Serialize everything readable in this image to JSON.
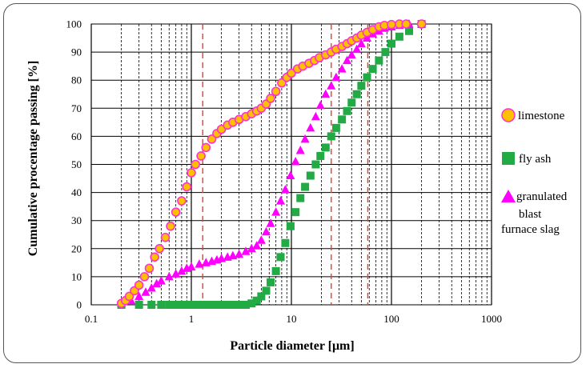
{
  "chart_data": {
    "type": "scatter",
    "title": "",
    "xlabel": "Particle diameter  [μm]",
    "ylabel": "Cumulative  procentage passing  [%]",
    "xscale": "log",
    "xlim": [
      0.1,
      1000
    ],
    "ylim": [
      0,
      100
    ],
    "x_ticks": [
      "0.1",
      "1",
      "10",
      "100",
      "1000"
    ],
    "y_ticks": [
      "0",
      "10",
      "20",
      "30",
      "40",
      "50",
      "60",
      "70",
      "80",
      "90",
      "100"
    ],
    "grid": true,
    "legend_position": "right",
    "reference_lines_x": [
      1.3,
      25,
      58
    ],
    "series": [
      {
        "name": "limestone",
        "marker": "circle",
        "color": "#ff33cc",
        "fill": "#ffc000",
        "points": [
          [
            0.2,
            0.5
          ],
          [
            0.22,
            1.5
          ],
          [
            0.24,
            3
          ],
          [
            0.27,
            5
          ],
          [
            0.3,
            7
          ],
          [
            0.34,
            10
          ],
          [
            0.38,
            13
          ],
          [
            0.43,
            17
          ],
          [
            0.48,
            20
          ],
          [
            0.55,
            24
          ],
          [
            0.62,
            28
          ],
          [
            0.7,
            33
          ],
          [
            0.8,
            37
          ],
          [
            0.9,
            42
          ],
          [
            1.0,
            47
          ],
          [
            1.1,
            50
          ],
          [
            1.25,
            53
          ],
          [
            1.4,
            56
          ],
          [
            1.6,
            59
          ],
          [
            1.8,
            61
          ],
          [
            2.0,
            62.5
          ],
          [
            2.3,
            64
          ],
          [
            2.6,
            65
          ],
          [
            3.0,
            66
          ],
          [
            3.5,
            67
          ],
          [
            4.0,
            68
          ],
          [
            4.5,
            69
          ],
          [
            5.0,
            70
          ],
          [
            5.6,
            71.5
          ],
          [
            6.2,
            73.5
          ],
          [
            7.0,
            76
          ],
          [
            8.0,
            79
          ],
          [
            9.0,
            81
          ],
          [
            10.0,
            82.5
          ],
          [
            11.5,
            84
          ],
          [
            13,
            85
          ],
          [
            15,
            86
          ],
          [
            17,
            87
          ],
          [
            19,
            88
          ],
          [
            22,
            89
          ],
          [
            25,
            90
          ],
          [
            28,
            91
          ],
          [
            32,
            92
          ],
          [
            36,
            93
          ],
          [
            40,
            94
          ],
          [
            45,
            95
          ],
          [
            50,
            96
          ],
          [
            57,
            97
          ],
          [
            65,
            98
          ],
          [
            75,
            99
          ],
          [
            85,
            99.5
          ],
          [
            100,
            99.8
          ],
          [
            120,
            100
          ],
          [
            140,
            100
          ],
          [
            200,
            100
          ]
        ]
      },
      {
        "name": "fly ash",
        "marker": "square",
        "color": "#22aa44",
        "points": [
          [
            0.2,
            0
          ],
          [
            0.3,
            0
          ],
          [
            0.4,
            0
          ],
          [
            0.5,
            0
          ],
          [
            0.6,
            0
          ],
          [
            0.7,
            0
          ],
          [
            0.8,
            0
          ],
          [
            0.9,
            0
          ],
          [
            1.0,
            0
          ],
          [
            1.2,
            0
          ],
          [
            1.4,
            0
          ],
          [
            1.6,
            0
          ],
          [
            1.8,
            0
          ],
          [
            2.0,
            0
          ],
          [
            2.3,
            0
          ],
          [
            2.6,
            0
          ],
          [
            3.0,
            0
          ],
          [
            3.5,
            0
          ],
          [
            4.0,
            0.5
          ],
          [
            4.5,
            1.5
          ],
          [
            5.0,
            3
          ],
          [
            5.6,
            5
          ],
          [
            6.2,
            8
          ],
          [
            7.0,
            12
          ],
          [
            7.8,
            17
          ],
          [
            8.7,
            22
          ],
          [
            9.8,
            28
          ],
          [
            11,
            33
          ],
          [
            12.3,
            38
          ],
          [
            13.7,
            42
          ],
          [
            15.5,
            46
          ],
          [
            17.5,
            50
          ],
          [
            19.5,
            53
          ],
          [
            22,
            56
          ],
          [
            25,
            60
          ],
          [
            28,
            63
          ],
          [
            32,
            66
          ],
          [
            36,
            69
          ],
          [
            40,
            72
          ],
          [
            45,
            75
          ],
          [
            50,
            78
          ],
          [
            57,
            81
          ],
          [
            65,
            84
          ],
          [
            75,
            87
          ],
          [
            87,
            90
          ],
          [
            100,
            93
          ],
          [
            120,
            95.5
          ],
          [
            150,
            97.5
          ],
          [
            200,
            100
          ]
        ]
      },
      {
        "name": "granulated blast furnace slag",
        "marker": "triangle",
        "color": "#ff00ff",
        "points": [
          [
            0.2,
            0.5
          ],
          [
            0.25,
            1.5
          ],
          [
            0.3,
            3
          ],
          [
            0.35,
            4.5
          ],
          [
            0.4,
            6
          ],
          [
            0.45,
            7.5
          ],
          [
            0.5,
            8.5
          ],
          [
            0.6,
            10
          ],
          [
            0.7,
            11
          ],
          [
            0.8,
            12
          ],
          [
            0.9,
            13
          ],
          [
            1.0,
            13.5
          ],
          [
            1.2,
            14.5
          ],
          [
            1.4,
            15
          ],
          [
            1.6,
            15.5
          ],
          [
            1.8,
            16
          ],
          [
            2.0,
            16.5
          ],
          [
            2.3,
            17
          ],
          [
            2.6,
            17.5
          ],
          [
            3.0,
            18
          ],
          [
            3.5,
            19
          ],
          [
            4.0,
            20
          ],
          [
            4.5,
            21
          ],
          [
            5.0,
            23
          ],
          [
            5.6,
            26
          ],
          [
            6.2,
            29
          ],
          [
            7.0,
            33
          ],
          [
            7.8,
            37
          ],
          [
            8.7,
            41
          ],
          [
            9.8,
            46
          ],
          [
            11,
            51
          ],
          [
            12.3,
            55
          ],
          [
            13.7,
            59
          ],
          [
            15.5,
            63
          ],
          [
            17.5,
            67
          ],
          [
            19.5,
            71
          ],
          [
            22,
            75
          ],
          [
            25,
            78
          ],
          [
            28,
            81
          ],
          [
            32,
            84
          ],
          [
            36,
            87
          ],
          [
            40,
            89
          ],
          [
            45,
            91
          ],
          [
            50,
            93
          ],
          [
            57,
            95
          ],
          [
            65,
            96.5
          ],
          [
            75,
            97.5
          ],
          [
            85,
            98.5
          ],
          [
            100,
            99
          ],
          [
            120,
            99.5
          ],
          [
            150,
            100
          ],
          [
            200,
            100
          ]
        ]
      }
    ],
    "legend": [
      {
        "label": "limestone"
      },
      {
        "label": "fly ash"
      },
      {
        "label_lines": [
          "granulated",
          "blast",
          "furnace slag"
        ]
      }
    ]
  }
}
